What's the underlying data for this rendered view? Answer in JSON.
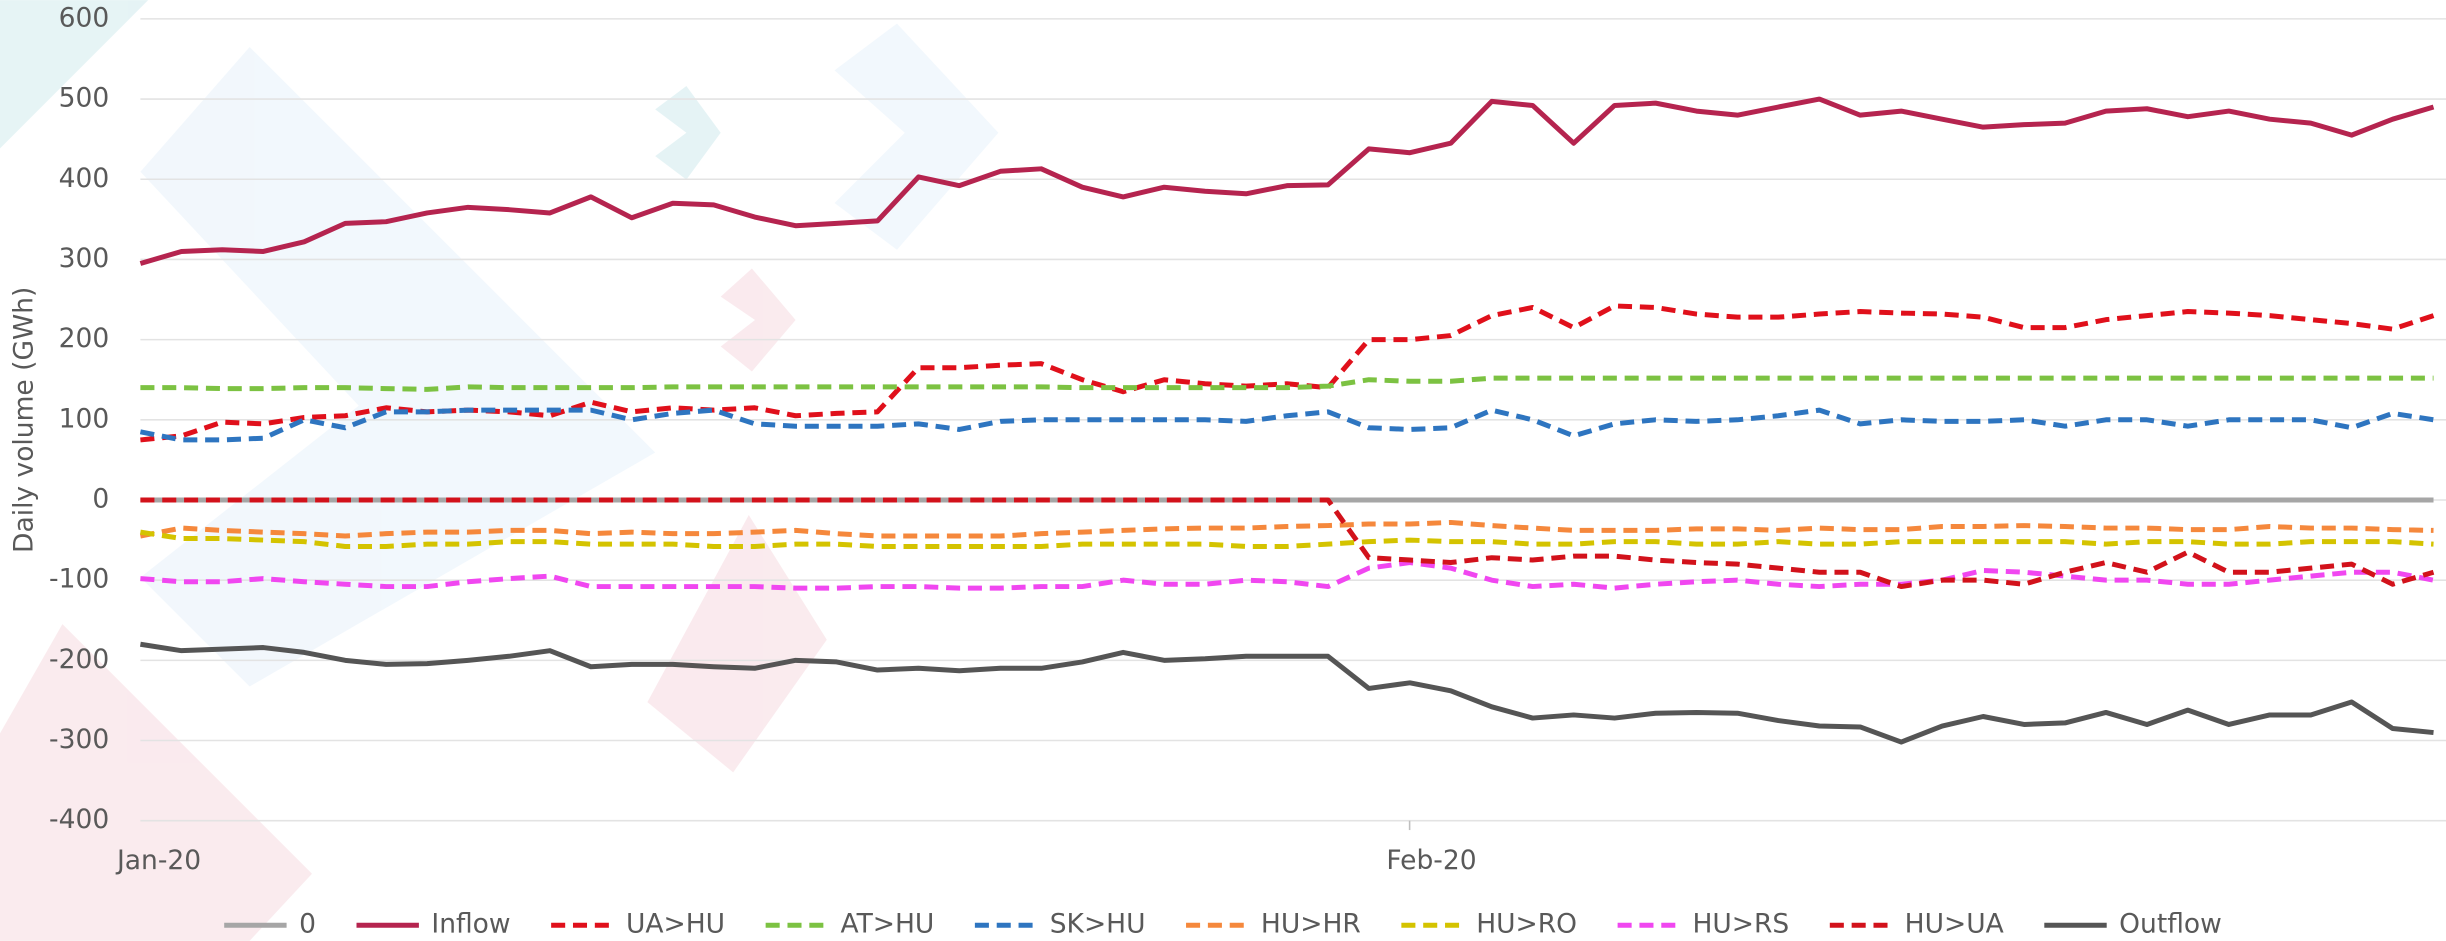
{
  "chart_data": {
    "type": "line",
    "y_label": "Daily volume (GWh)",
    "categories": [
      "Jan-20",
      null,
      null,
      null,
      null,
      null,
      null,
      null,
      null,
      null,
      null,
      null,
      null,
      null,
      null,
      null,
      null,
      null,
      null,
      null,
      null,
      null,
      null,
      null,
      null,
      null,
      null,
      null,
      null,
      null,
      null,
      "Feb-20",
      null,
      null,
      null,
      null,
      null,
      null,
      null,
      null,
      null,
      null,
      null,
      null,
      null,
      null,
      null,
      null,
      null,
      null,
      null,
      null,
      null,
      null,
      null,
      null,
      null
    ],
    "ylim": [
      -400,
      600
    ],
    "yticks": [
      -400,
      -300,
      -200,
      -100,
      0,
      100,
      200,
      300,
      400,
      500,
      600
    ],
    "grid": true,
    "legend": "bottom",
    "series": [
      {
        "name": "0",
        "color": "#a6a6a6",
        "dashed": false,
        "values": [
          0,
          0,
          0,
          0,
          0,
          0,
          0,
          0,
          0,
          0,
          0,
          0,
          0,
          0,
          0,
          0,
          0,
          0,
          0,
          0,
          0,
          0,
          0,
          0,
          0,
          0,
          0,
          0,
          0,
          0,
          0,
          0,
          0,
          0,
          0,
          0,
          0,
          0,
          0,
          0,
          0,
          0,
          0,
          0,
          0,
          0,
          0,
          0,
          0,
          0,
          0,
          0,
          0,
          0,
          0,
          0,
          0
        ]
      },
      {
        "name": "Inflow",
        "color": "#b5244f",
        "dashed": false,
        "values": [
          295,
          310,
          312,
          310,
          322,
          345,
          347,
          358,
          365,
          362,
          358,
          378,
          352,
          370,
          368,
          353,
          342,
          345,
          348,
          403,
          392,
          410,
          413,
          390,
          378,
          390,
          385,
          382,
          392,
          393,
          438,
          433,
          445,
          497,
          492,
          445,
          492,
          495,
          485,
          480,
          490,
          500,
          480,
          485,
          475,
          465,
          468,
          470,
          485,
          488,
          478,
          485,
          475,
          470,
          455,
          475,
          490
        ]
      },
      {
        "name": "UA>HU",
        "color": "#e0101b",
        "dashed": true,
        "values": [
          75,
          80,
          97,
          95,
          103,
          105,
          115,
          110,
          112,
          110,
          105,
          122,
          110,
          115,
          112,
          115,
          105,
          108,
          110,
          165,
          165,
          168,
          170,
          150,
          135,
          150,
          145,
          142,
          145,
          140,
          200,
          200,
          205,
          230,
          240,
          215,
          242,
          240,
          232,
          228,
          228,
          232,
          235,
          233,
          232,
          228,
          215,
          215,
          225,
          230,
          235,
          233,
          230,
          225,
          220,
          213,
          230
        ]
      },
      {
        "name": "AT>HU",
        "color": "#7cc242",
        "dashed": true,
        "values": [
          140,
          140,
          139,
          139,
          140,
          140,
          139,
          138,
          141,
          140,
          140,
          140,
          140,
          141,
          141,
          141,
          141,
          141,
          141,
          141,
          141,
          141,
          141,
          140,
          140,
          140,
          140,
          140,
          140,
          142,
          150,
          148,
          148,
          152,
          152,
          152,
          152,
          152,
          152,
          152,
          152,
          152,
          152,
          152,
          152,
          152,
          152,
          152,
          152,
          152,
          152,
          152,
          152,
          152,
          152,
          152,
          152
        ]
      },
      {
        "name": "SK>HU",
        "color": "#2e75c0",
        "dashed": true,
        "values": [
          85,
          75,
          75,
          77,
          100,
          90,
          110,
          110,
          112,
          112,
          112,
          112,
          100,
          108,
          112,
          95,
          92,
          92,
          92,
          95,
          88,
          98,
          100,
          100,
          100,
          100,
          100,
          98,
          105,
          110,
          90,
          88,
          90,
          112,
          100,
          80,
          95,
          100,
          98,
          100,
          105,
          112,
          95,
          100,
          98,
          98,
          100,
          92,
          100,
          100,
          92,
          100,
          100,
          100,
          90,
          108,
          100
        ]
      },
      {
        "name": "HU>HR",
        "color": "#f5883c",
        "dashed": true,
        "values": [
          -45,
          -35,
          -38,
          -40,
          -42,
          -45,
          -42,
          -40,
          -40,
          -38,
          -38,
          -42,
          -40,
          -42,
          -42,
          -40,
          -38,
          -42,
          -45,
          -45,
          -45,
          -45,
          -42,
          -40,
          -38,
          -36,
          -35,
          -35,
          -33,
          -32,
          -30,
          -30,
          -28,
          -32,
          -35,
          -38,
          -38,
          -38,
          -36,
          -36,
          -38,
          -35,
          -37,
          -37,
          -33,
          -33,
          -32,
          -33,
          -35,
          -35,
          -37,
          -37,
          -33,
          -35,
          -35,
          -37,
          -38
        ]
      },
      {
        "name": "HU>RO",
        "color": "#d4c300",
        "dashed": true,
        "values": [
          -40,
          -48,
          -48,
          -50,
          -52,
          -58,
          -58,
          -55,
          -55,
          -52,
          -52,
          -55,
          -55,
          -55,
          -58,
          -58,
          -55,
          -55,
          -58,
          -58,
          -58,
          -58,
          -58,
          -55,
          -55,
          -55,
          -55,
          -58,
          -58,
          -55,
          -52,
          -50,
          -52,
          -52,
          -55,
          -55,
          -52,
          -52,
          -55,
          -55,
          -52,
          -55,
          -55,
          -52,
          -52,
          -52,
          -52,
          -52,
          -55,
          -52,
          -52,
          -55,
          -55,
          -52,
          -52,
          -52,
          -55
        ]
      },
      {
        "name": "HU>RS",
        "color": "#f047f0",
        "dashed": true,
        "values": [
          -98,
          -102,
          -102,
          -98,
          -102,
          -105,
          -108,
          -108,
          -102,
          -98,
          -95,
          -108,
          -108,
          -108,
          -108,
          -108,
          -110,
          -110,
          -108,
          -108,
          -110,
          -110,
          -108,
          -108,
          -100,
          -105,
          -105,
          -100,
          -102,
          -108,
          -85,
          -78,
          -85,
          -100,
          -108,
          -105,
          -110,
          -105,
          -102,
          -100,
          -105,
          -108,
          -105,
          -105,
          -100,
          -88,
          -90,
          -95,
          -100,
          -100,
          -105,
          -105,
          -100,
          -95,
          -90,
          -90,
          -100
        ]
      },
      {
        "name": "HU>UA",
        "color": "#d2121b",
        "dashed": true,
        "values": [
          0,
          0,
          0,
          0,
          0,
          0,
          0,
          0,
          0,
          0,
          0,
          0,
          0,
          0,
          0,
          0,
          0,
          0,
          0,
          0,
          0,
          0,
          0,
          0,
          0,
          0,
          0,
          0,
          0,
          0,
          -72,
          -75,
          -78,
          -72,
          -75,
          -70,
          -70,
          -75,
          -78,
          -80,
          -85,
          -90,
          -90,
          -108,
          -100,
          -100,
          -105,
          -90,
          -78,
          -90,
          -65,
          -90,
          -90,
          -85,
          -80,
          -105,
          -90
        ]
      },
      {
        "name": "Outflow",
        "color": "#555555",
        "dashed": false,
        "values": [
          -180,
          -188,
          -186,
          -184,
          -190,
          -200,
          -205,
          -204,
          -200,
          -195,
          -188,
          -208,
          -205,
          -205,
          -208,
          -210,
          -200,
          -202,
          -212,
          -210,
          -213,
          -210,
          -210,
          -202,
          -190,
          -200,
          -198,
          -195,
          -195,
          -195,
          -235,
          -228,
          -238,
          -258,
          -272,
          -268,
          -272,
          -266,
          -265,
          -266,
          -275,
          -282,
          -283,
          -302,
          -282,
          -270,
          -280,
          -278,
          -265,
          -280,
          -262,
          -280,
          -268,
          -268,
          -252,
          -285,
          -290
        ]
      }
    ]
  }
}
